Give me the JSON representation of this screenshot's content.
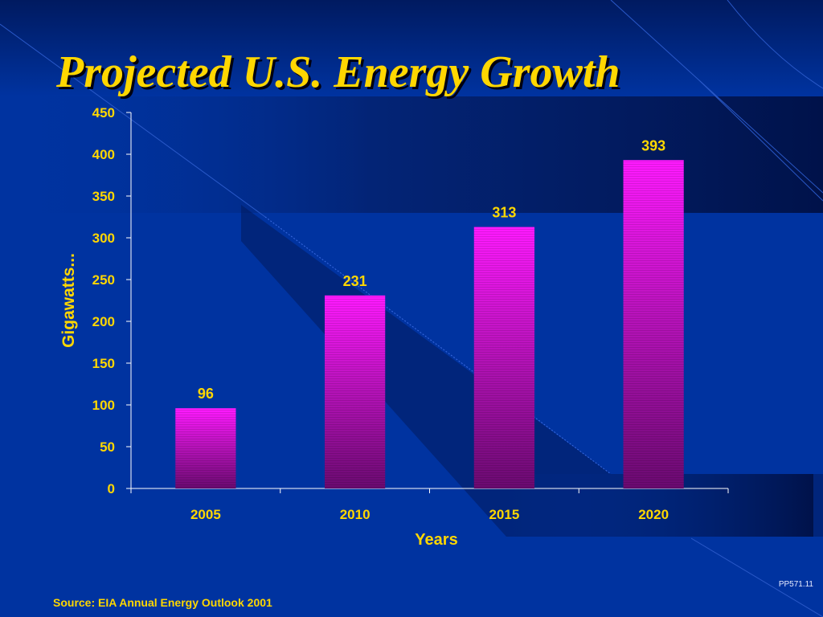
{
  "slide": {
    "title": "Projected U.S. Energy Growth",
    "source": "Source: EIA Annual Energy Outlook 2001",
    "code": "PP571.11"
  },
  "colors": {
    "background": "#0033a0",
    "text": "#ffd700",
    "bar_top": "#ff1aff",
    "bar_bottom": "#6a0a70"
  },
  "chart_data": {
    "type": "bar",
    "categories": [
      "2005",
      "2010",
      "2015",
      "2020"
    ],
    "values": [
      96,
      231,
      313,
      393
    ],
    "data_labels": [
      "96",
      "231",
      "313",
      "393"
    ],
    "xlabel": "Years",
    "ylabel": "Gigawatts...",
    "ylim": [
      0,
      450
    ],
    "yticks": [
      0,
      50,
      100,
      150,
      200,
      250,
      300,
      350,
      400,
      450
    ],
    "grid": false,
    "legend": "none"
  }
}
